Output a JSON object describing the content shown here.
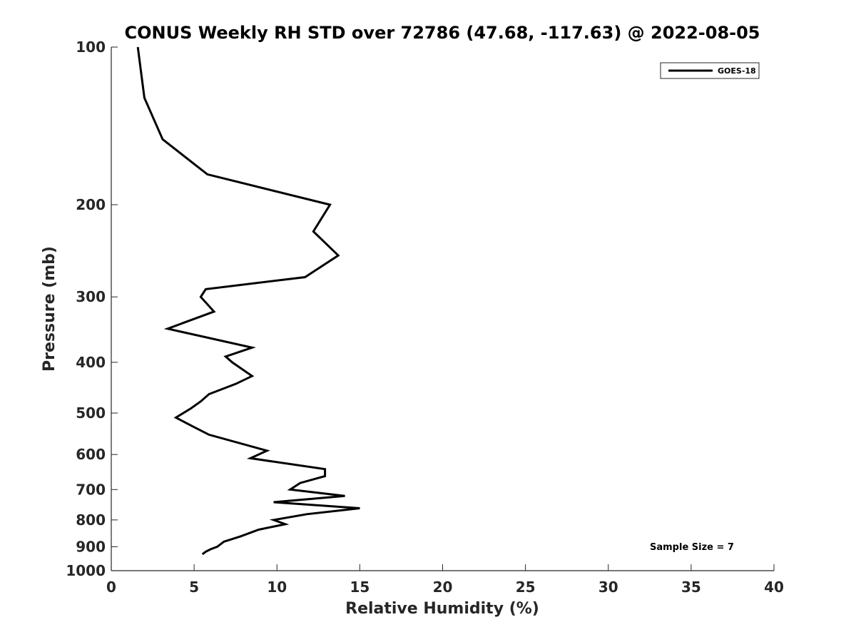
{
  "chart_data": {
    "type": "line",
    "title": "CONUS Weekly RH STD over 72786 (47.68, -117.63) @ 2022-08-05",
    "xlabel": "Relative Humidity (%)",
    "ylabel": "Pressure (mb)",
    "xlim": [
      0,
      40
    ],
    "ylim": [
      100,
      1000
    ],
    "yscale": "log",
    "y_reversed": true,
    "xticks": [
      0,
      5,
      10,
      15,
      20,
      25,
      30,
      35,
      40
    ],
    "yticks": [
      100,
      200,
      300,
      400,
      500,
      600,
      700,
      800,
      900,
      1000
    ],
    "grid": false,
    "legend_position": "top-right",
    "annotation": "Sample Size = 7",
    "series": [
      {
        "name": "GOES-18",
        "color": "#000000",
        "points": [
          [
            1.6,
            100
          ],
          [
            2.0,
            125
          ],
          [
            3.1,
            150
          ],
          [
            5.8,
            175
          ],
          [
            13.2,
            200
          ],
          [
            12.2,
            225
          ],
          [
            13.7,
            250
          ],
          [
            11.7,
            275
          ],
          [
            5.7,
            290
          ],
          [
            5.4,
            300
          ],
          [
            6.2,
            320
          ],
          [
            3.4,
            345
          ],
          [
            8.5,
            375
          ],
          [
            6.9,
            390
          ],
          [
            7.3,
            400
          ],
          [
            8.5,
            425
          ],
          [
            7.5,
            440
          ],
          [
            5.9,
            460
          ],
          [
            5.4,
            475
          ],
          [
            4.8,
            490
          ],
          [
            3.9,
            510
          ],
          [
            4.9,
            530
          ],
          [
            5.9,
            550
          ],
          [
            9.4,
            590
          ],
          [
            8.4,
            610
          ],
          [
            12.9,
            640
          ],
          [
            12.9,
            660
          ],
          [
            11.4,
            680
          ],
          [
            10.8,
            700
          ],
          [
            14.1,
            720
          ],
          [
            9.8,
            740
          ],
          [
            15.0,
            760
          ],
          [
            11.8,
            780
          ],
          [
            9.8,
            800
          ],
          [
            10.5,
            815
          ],
          [
            8.9,
            835
          ],
          [
            7.8,
            860
          ],
          [
            6.8,
            880
          ],
          [
            6.4,
            900
          ],
          [
            6.0,
            910
          ],
          [
            5.7,
            920
          ],
          [
            5.5,
            930
          ]
        ]
      }
    ]
  }
}
